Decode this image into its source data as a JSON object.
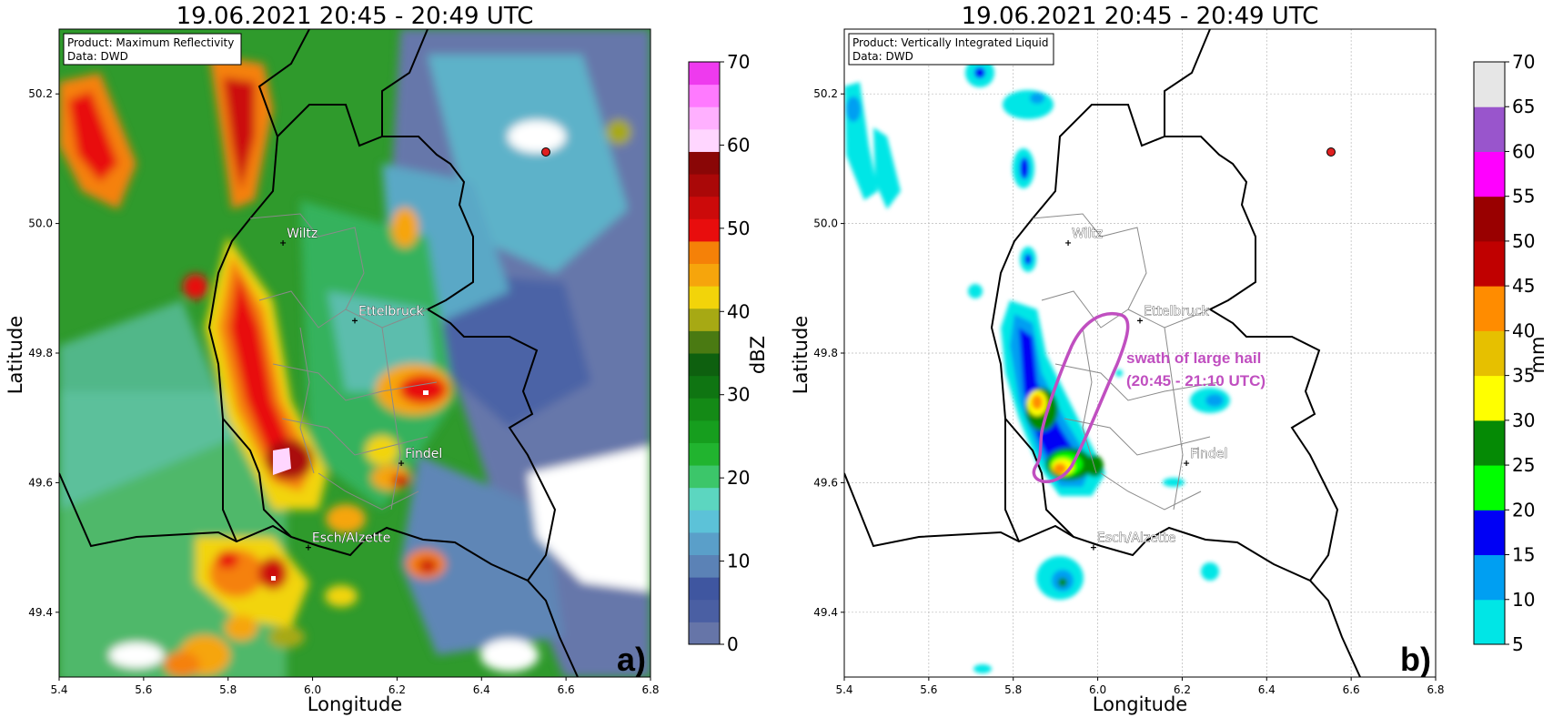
{
  "panels": [
    {
      "id": "a",
      "title": "19.06.2021 20:45 - 20:49 UTC",
      "product": "Product: Maximum Reflectivity",
      "source": "Data: DWD",
      "xlabel": "Longitude",
      "ylabel": "Latitude",
      "panel_label": "a)",
      "colorbar_label": "dBZ",
      "cities": [
        {
          "name": "Wiltz",
          "lon": 5.93,
          "lat": 49.97
        },
        {
          "name": "Ettelbruck",
          "lon": 6.1,
          "lat": 49.85
        },
        {
          "name": "Findel",
          "lon": 6.21,
          "lat": 49.63
        },
        {
          "name": "Esch/Alzette",
          "lon": 5.99,
          "lat": 49.5
        }
      ],
      "radar_site": {
        "lon": 6.55,
        "lat": 50.11
      }
    },
    {
      "id": "b",
      "title": "19.06.2021 20:45 - 20:49 UTC",
      "product": "Product: Vertically Integrated Liquid",
      "source": "Data: DWD",
      "xlabel": "Longitude",
      "ylabel": "Latitude",
      "panel_label": "b)",
      "colorbar_label": "mm",
      "annotation_line1": "swath of large hail",
      "annotation_line2": "(20:45 - 21:10 UTC)",
      "cities": [
        {
          "name": "Wiltz",
          "lon": 5.93,
          "lat": 49.97
        },
        {
          "name": "Ettelbruck",
          "lon": 6.1,
          "lat": 49.85
        },
        {
          "name": "Findel",
          "lon": 6.21,
          "lat": 49.63
        },
        {
          "name": "Esch/Alzette",
          "lon": 5.99,
          "lat": 49.5
        }
      ],
      "radar_site": {
        "lon": 6.55,
        "lat": 50.11
      }
    }
  ],
  "axes": {
    "lon_range": [
      5.4,
      6.8
    ],
    "lat_range": [
      49.3,
      50.3
    ],
    "lon_ticks": [
      "5.4",
      "5.6",
      "5.8",
      "6.0",
      "6.2",
      "6.4",
      "6.6",
      "6.8"
    ],
    "lat_ticks": [
      "49.4",
      "49.6",
      "49.8",
      "50.0",
      "50.2"
    ]
  },
  "colorbar_a": {
    "ticks": [
      "0",
      "10",
      "20",
      "30",
      "40",
      "50",
      "60",
      "70"
    ],
    "colors": [
      "#6675a8",
      "#4a5fa3",
      "#3f56a0",
      "#5b82b6",
      "#5a9fc9",
      "#5cc2d8",
      "#5cd6c0",
      "#3cc66a",
      "#21b42f",
      "#169e1e",
      "#148a16",
      "#0f7512",
      "#0e600f",
      "#4a7a12",
      "#a7a914",
      "#f2d40a",
      "#f6a50c",
      "#f58108",
      "#e80d0d",
      "#cc0a0a",
      "#aa0808",
      "#8a0606",
      "#ffd6ff",
      "#ffb0ff",
      "#ff7aff",
      "#ee3aee"
    ]
  },
  "colorbar_b": {
    "ticks": [
      "5",
      "10",
      "15",
      "20",
      "25",
      "30",
      "35",
      "40",
      "45",
      "50",
      "55",
      "60",
      "65",
      "70"
    ],
    "colors": [
      "#00e6e6",
      "#009ff2",
      "#0000f5",
      "#00ff00",
      "#058a05",
      "#ffff00",
      "#e6c000",
      "#ff8c00",
      "#c00000",
      "#990000",
      "#ff00ff",
      "#9955cc",
      "#e6e6e6"
    ]
  }
}
